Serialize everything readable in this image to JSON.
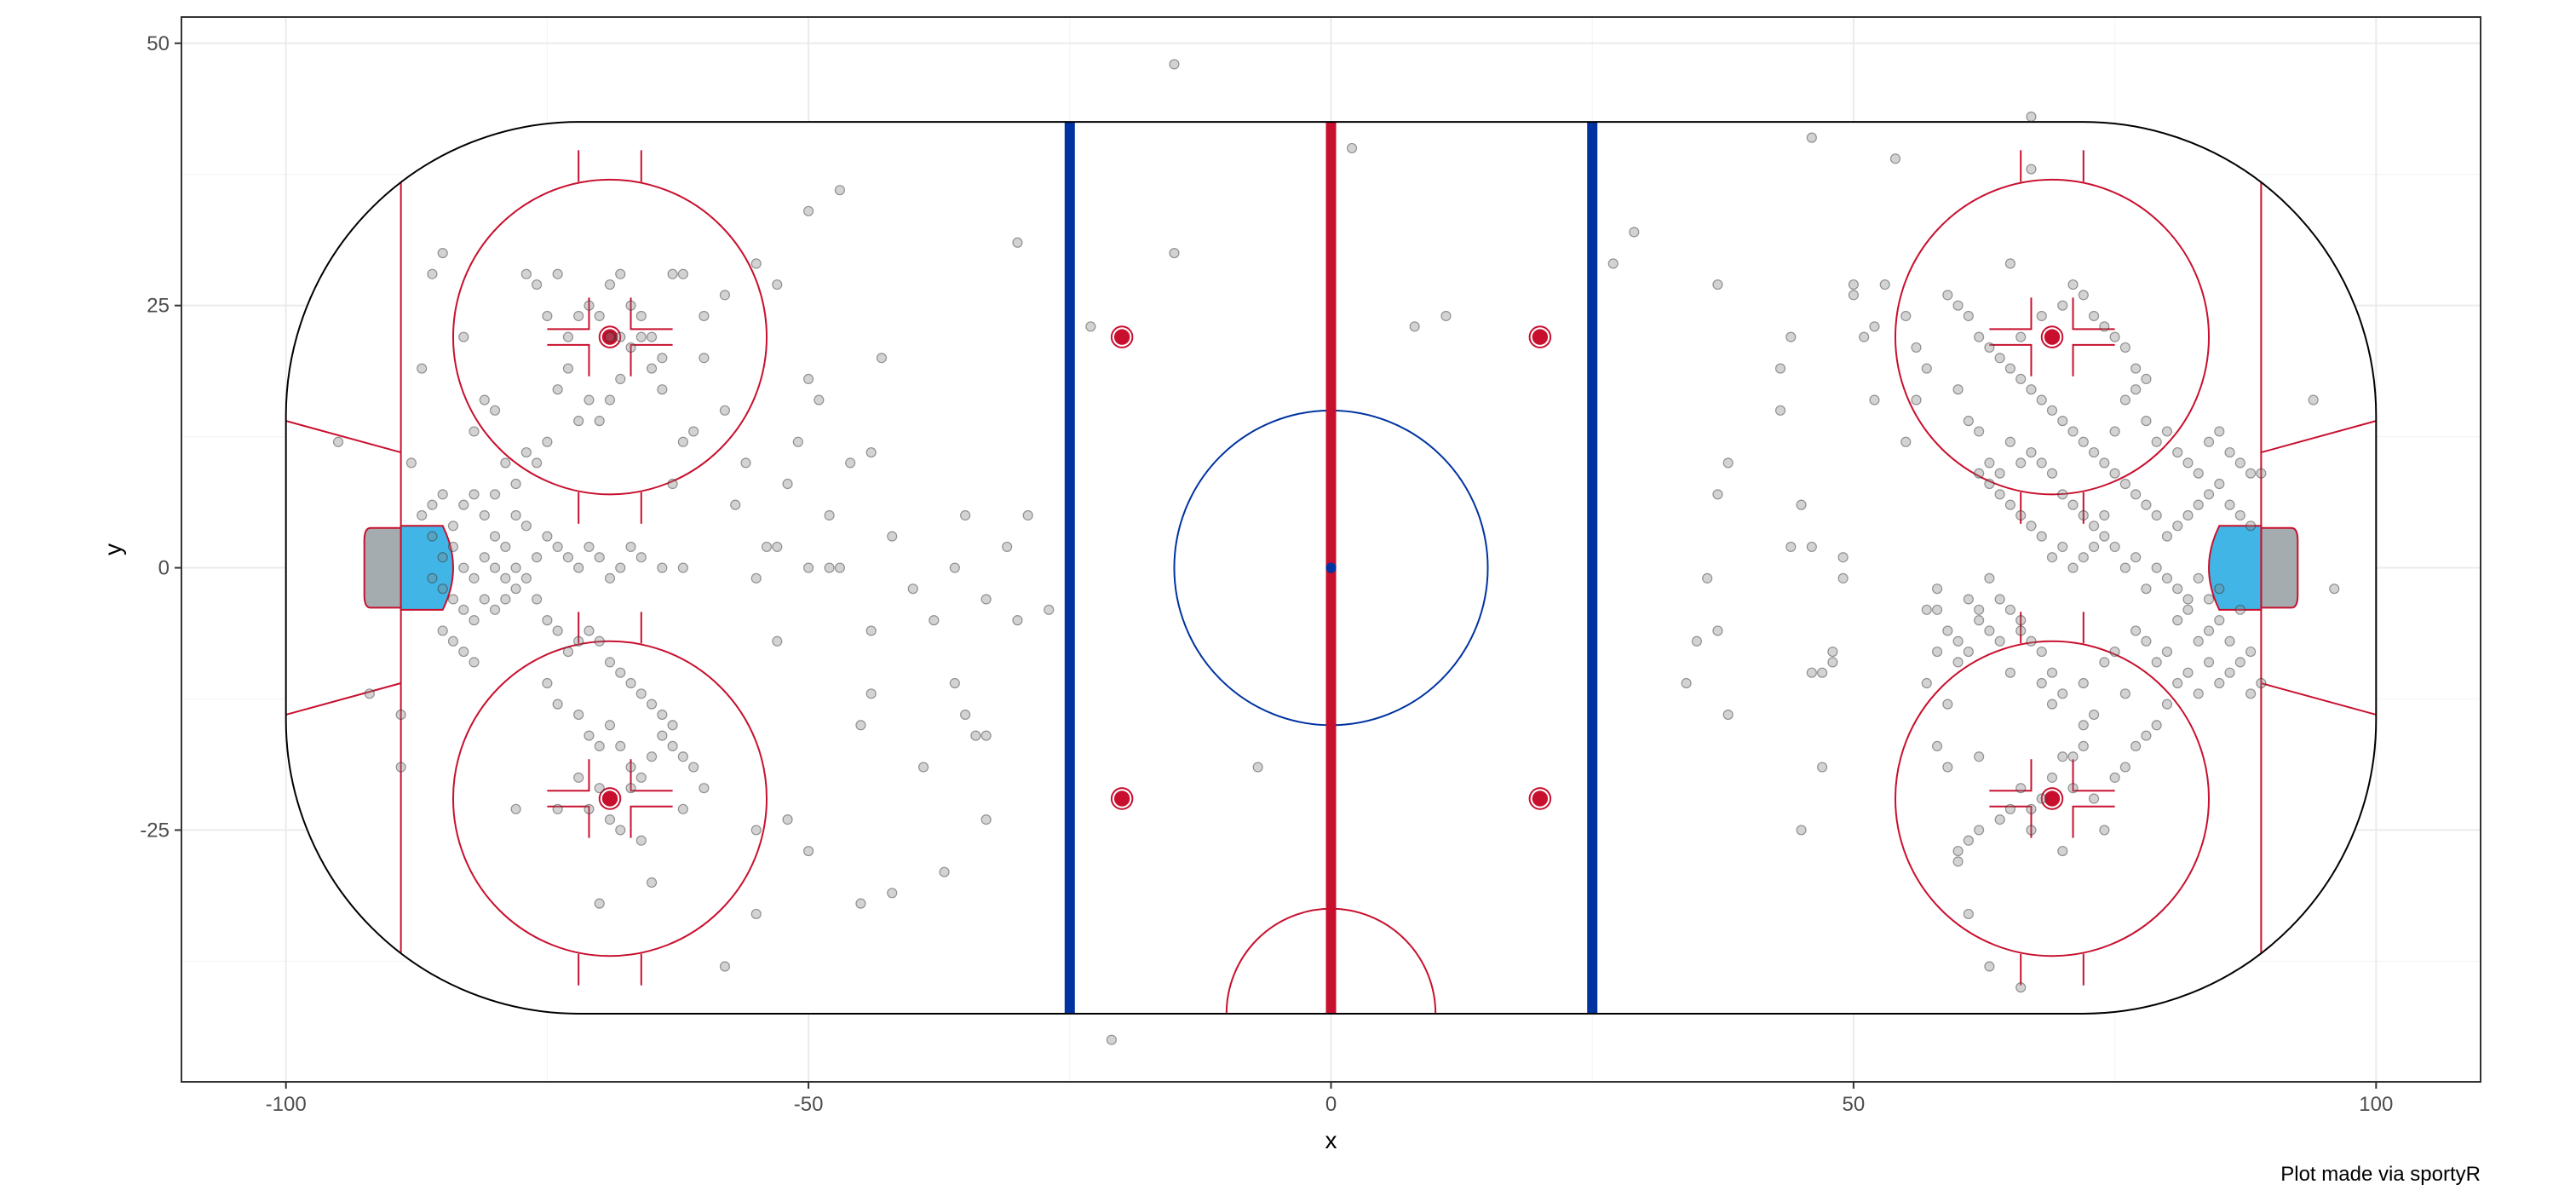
{
  "chart_data": {
    "type": "scatter",
    "title": "",
    "xlabel": "x",
    "ylabel": "y",
    "caption": "Plot made via sportyR",
    "xlim": [
      -110,
      110
    ],
    "ylim": [
      -49,
      52.5
    ],
    "x_ticks": [
      -100,
      -50,
      0,
      50,
      100
    ],
    "x_tick_labels": [
      "-100",
      "-50",
      "0",
      "50",
      "100"
    ],
    "y_ticks": [
      -25,
      0,
      25,
      50
    ],
    "y_tick_labels": [
      "-25",
      "0",
      "25",
      "50"
    ],
    "grid": true,
    "legend": "none",
    "colors": {
      "points": "#808080",
      "boards": "#000000",
      "red_lines": "#c8102e",
      "blue_lines": "#0033a0",
      "center_circle": "#0033a0",
      "crease": "#41b6e6",
      "net": "#a5acaf",
      "grid_major": "#ebebeb",
      "grid_minor": "#f5f5f5"
    },
    "rink": {
      "x_extent": [
        -100,
        100
      ],
      "y_extent": [
        -42.5,
        42.5
      ],
      "corner_radius": 28,
      "goal_line_x": 89,
      "blue_line_x": 25,
      "center_circle_radius": 15,
      "faceoff_circle_radius": 15,
      "faceoff_spots": [
        [
          -69,
          22
        ],
        [
          -69,
          -22
        ],
        [
          69,
          22
        ],
        [
          69,
          -22
        ],
        [
          -20,
          22
        ],
        [
          -20,
          -22
        ],
        [
          20,
          22
        ],
        [
          20,
          -22
        ]
      ]
    },
    "points": [
      [
        -95,
        12
      ],
      [
        -92,
        -12
      ],
      [
        -89,
        -19
      ],
      [
        -89,
        -14
      ],
      [
        -88,
        10
      ],
      [
        -87,
        19
      ],
      [
        -86,
        6
      ],
      [
        -85,
        7
      ],
      [
        -84,
        4
      ],
      [
        -83,
        6
      ],
      [
        -82,
        7
      ],
      [
        -81,
        5
      ],
      [
        -80,
        7
      ],
      [
        -80,
        3
      ],
      [
        -79,
        2
      ],
      [
        -78,
        5
      ],
      [
        -77,
        4
      ],
      [
        -76,
        1
      ],
      [
        -75,
        3
      ],
      [
        -74,
        2
      ],
      [
        -73,
        1
      ],
      [
        -72,
        0
      ],
      [
        -71,
        2
      ],
      [
        -70,
        1
      ],
      [
        -69,
        -1
      ],
      [
        -68,
        0
      ],
      [
        -67,
        2
      ],
      [
        -66,
        1
      ],
      [
        -64,
        0
      ],
      [
        -62,
        0
      ],
      [
        -87,
        5
      ],
      [
        -86,
        3
      ],
      [
        -85,
        1
      ],
      [
        -84,
        2
      ],
      [
        -83,
        0
      ],
      [
        -82,
        -1
      ],
      [
        -81,
        1
      ],
      [
        -80,
        0
      ],
      [
        -79,
        -1
      ],
      [
        -78,
        -2
      ],
      [
        -86,
        -1
      ],
      [
        -85,
        -2
      ],
      [
        -84,
        -3
      ],
      [
        -83,
        -4
      ],
      [
        -82,
        -5
      ],
      [
        -81,
        -3
      ],
      [
        -80,
        -4
      ],
      [
        -79,
        -3
      ],
      [
        -78,
        0
      ],
      [
        -77,
        -1
      ],
      [
        -85,
        -6
      ],
      [
        -84,
        -7
      ],
      [
        -83,
        -8
      ],
      [
        -82,
        -9
      ],
      [
        -76,
        -3
      ],
      [
        -75,
        -5
      ],
      [
        -74,
        -6
      ],
      [
        -73,
        -8
      ],
      [
        -72,
        -7
      ],
      [
        -71,
        -6
      ],
      [
        -70,
        -7
      ],
      [
        -69,
        -9
      ],
      [
        -68,
        -10
      ],
      [
        -67,
        -11
      ],
      [
        -66,
        -12
      ],
      [
        -65,
        -13
      ],
      [
        -64,
        -14
      ],
      [
        -63,
        -15
      ],
      [
        -75,
        -11
      ],
      [
        -74,
        -13
      ],
      [
        -72,
        -14
      ],
      [
        -71,
        -16
      ],
      [
        -70,
        -17
      ],
      [
        -69,
        -15
      ],
      [
        -68,
        -17
      ],
      [
        -67,
        -19
      ],
      [
        -66,
        -20
      ],
      [
        -65,
        -18
      ],
      [
        -64,
        -16
      ],
      [
        -63,
        -17
      ],
      [
        -62,
        -18
      ],
      [
        -61,
        -19
      ],
      [
        -60,
        -21
      ],
      [
        -74,
        -23
      ],
      [
        -72,
        -20
      ],
      [
        -71,
        -23
      ],
      [
        -70,
        -21
      ],
      [
        -69,
        -24
      ],
      [
        -68,
        -25
      ],
      [
        -67,
        -21
      ],
      [
        -66,
        -26
      ],
      [
        -65,
        -30
      ],
      [
        -70,
        -32
      ],
      [
        -78,
        -23
      ],
      [
        -58,
        -38
      ],
      [
        -62,
        -23
      ],
      [
        -55,
        -25
      ],
      [
        -52,
        -24
      ],
      [
        -55,
        -33
      ],
      [
        -50,
        -27
      ],
      [
        -45,
        -32
      ],
      [
        -42,
        -31
      ],
      [
        -37,
        -29
      ],
      [
        -33,
        -24
      ],
      [
        -36,
        -11
      ],
      [
        -35,
        -14
      ],
      [
        -34,
        -16
      ],
      [
        -33,
        -16
      ],
      [
        -38,
        -5
      ],
      [
        -45,
        -15
      ],
      [
        -44,
        -6
      ],
      [
        -40,
        -2
      ],
      [
        -39,
        -19
      ],
      [
        -36,
        0
      ],
      [
        -33,
        -3
      ],
      [
        -31,
        2
      ],
      [
        -30,
        -5
      ],
      [
        -29,
        5
      ],
      [
        -27,
        -4
      ],
      [
        -35,
        5
      ],
      [
        -42,
        3
      ],
      [
        -47,
        0
      ],
      [
        -48,
        0
      ],
      [
        -50,
        0
      ],
      [
        -53,
        -7
      ],
      [
        -55,
        -1
      ],
      [
        -54,
        2
      ],
      [
        -53,
        2
      ],
      [
        -52,
        8
      ],
      [
        -51,
        12
      ],
      [
        -50,
        18
      ],
      [
        -49,
        16
      ],
      [
        -48,
        5
      ],
      [
        -46,
        10
      ],
      [
        -44,
        11
      ],
      [
        -43,
        20
      ],
      [
        -44,
        -12
      ],
      [
        -56,
        10
      ],
      [
        -57,
        6
      ],
      [
        -58,
        15
      ],
      [
        -58,
        26
      ],
      [
        -60,
        20
      ],
      [
        -61,
        13
      ],
      [
        -62,
        12
      ],
      [
        -63,
        8
      ],
      [
        -64,
        17
      ],
      [
        -65,
        19
      ],
      [
        -66,
        22
      ],
      [
        -67,
        21
      ],
      [
        -68,
        18
      ],
      [
        -69,
        16
      ],
      [
        -70,
        14
      ],
      [
        -71,
        16
      ],
      [
        -72,
        14
      ],
      [
        -73,
        19
      ],
      [
        -74,
        17
      ],
      [
        -75,
        12
      ],
      [
        -76,
        10
      ],
      [
        -77,
        11
      ],
      [
        -78,
        8
      ],
      [
        -79,
        10
      ],
      [
        -80,
        15
      ],
      [
        -81,
        16
      ],
      [
        -82,
        13
      ],
      [
        -83,
        22
      ],
      [
        -85,
        30
      ],
      [
        -86,
        28
      ],
      [
        -72,
        24
      ],
      [
        -73,
        22
      ],
      [
        -71,
        25
      ],
      [
        -70,
        24
      ],
      [
        -69,
        27
      ],
      [
        -68,
        28
      ],
      [
        -67,
        25
      ],
      [
        -66,
        24
      ],
      [
        -65,
        22
      ],
      [
        -64,
        20
      ],
      [
        -63,
        28
      ],
      [
        -62,
        28
      ],
      [
        -60,
        24
      ],
      [
        -74,
        28
      ],
      [
        -75,
        24
      ],
      [
        -76,
        27
      ],
      [
        -77,
        28
      ],
      [
        -69,
        22
      ],
      [
        -68,
        22
      ],
      [
        -55,
        29
      ],
      [
        -53,
        27
      ],
      [
        -50,
        34
      ],
      [
        -47,
        36
      ],
      [
        -30,
        31
      ],
      [
        -23,
        23
      ],
      [
        -15,
        30
      ],
      [
        -15,
        48
      ],
      [
        -21,
        -45
      ],
      [
        -7,
        -19
      ],
      [
        2,
        40
      ],
      [
        8,
        23
      ],
      [
        11,
        24
      ],
      [
        27,
        29
      ],
      [
        29,
        32
      ],
      [
        37,
        27
      ],
      [
        38,
        10
      ],
      [
        37,
        7
      ],
      [
        36,
        -1
      ],
      [
        35,
        -7
      ],
      [
        34,
        -11
      ],
      [
        37,
        -6
      ],
      [
        38,
        -14
      ],
      [
        43,
        15
      ],
      [
        43,
        19
      ],
      [
        44,
        22
      ],
      [
        44,
        2
      ],
      [
        45,
        6
      ],
      [
        46,
        2
      ],
      [
        46,
        -10
      ],
      [
        45,
        -25
      ],
      [
        46,
        41
      ],
      [
        47,
        -19
      ],
      [
        47,
        -10
      ],
      [
        48,
        -8
      ],
      [
        48,
        -9
      ],
      [
        49,
        1
      ],
      [
        49,
        -1
      ],
      [
        50,
        27
      ],
      [
        50,
        26
      ],
      [
        51,
        22
      ],
      [
        52,
        23
      ],
      [
        52,
        16
      ],
      [
        53,
        27
      ],
      [
        54,
        39
      ],
      [
        55,
        24
      ],
      [
        55,
        12
      ],
      [
        56,
        21
      ],
      [
        56,
        16
      ],
      [
        57,
        19
      ],
      [
        57,
        -4
      ],
      [
        58,
        -2
      ],
      [
        58,
        -8
      ],
      [
        59,
        -13
      ],
      [
        57,
        -11
      ],
      [
        58,
        -17
      ],
      [
        59,
        -19
      ],
      [
        60,
        -28
      ],
      [
        60,
        -9
      ],
      [
        61,
        -33
      ],
      [
        62,
        -18
      ],
      [
        63,
        -38
      ],
      [
        62,
        -4
      ],
      [
        61,
        -3
      ],
      [
        63,
        -1
      ],
      [
        64,
        -7
      ],
      [
        65,
        -10
      ],
      [
        66,
        -5
      ],
      [
        67,
        -23
      ],
      [
        68,
        -11
      ],
      [
        69,
        -13
      ],
      [
        70,
        -18
      ],
      [
        71,
        -21
      ],
      [
        72,
        -11
      ],
      [
        73,
        -14
      ],
      [
        74,
        -9
      ],
      [
        75,
        -8
      ],
      [
        76,
        -12
      ],
      [
        77,
        -6
      ],
      [
        78,
        -7
      ],
      [
        79,
        -9
      ],
      [
        80,
        -8
      ],
      [
        81,
        -5
      ],
      [
        82,
        -4
      ],
      [
        83,
        -7
      ],
      [
        84,
        -6
      ],
      [
        85,
        -5
      ],
      [
        86,
        -7
      ],
      [
        87,
        -4
      ],
      [
        88,
        -8
      ],
      [
        84,
        -3
      ],
      [
        85,
        -2
      ],
      [
        83,
        -1
      ],
      [
        82,
        -3
      ],
      [
        81,
        -2
      ],
      [
        80,
        -1
      ],
      [
        79,
        0
      ],
      [
        78,
        -2
      ],
      [
        77,
        1
      ],
      [
        76,
        0
      ],
      [
        75,
        2
      ],
      [
        74,
        3
      ],
      [
        73,
        2
      ],
      [
        72,
        1
      ],
      [
        71,
        0
      ],
      [
        70,
        2
      ],
      [
        69,
        1
      ],
      [
        68,
        3
      ],
      [
        67,
        4
      ],
      [
        66,
        5
      ],
      [
        65,
        6
      ],
      [
        64,
        7
      ],
      [
        63,
        8
      ],
      [
        62,
        9
      ],
      [
        80,
        3
      ],
      [
        81,
        4
      ],
      [
        82,
        5
      ],
      [
        83,
        6
      ],
      [
        84,
        7
      ],
      [
        85,
        8
      ],
      [
        86,
        6
      ],
      [
        87,
        5
      ],
      [
        88,
        4
      ],
      [
        79,
        5
      ],
      [
        78,
        6
      ],
      [
        77,
        7
      ],
      [
        76,
        8
      ],
      [
        75,
        9
      ],
      [
        74,
        10
      ],
      [
        73,
        11
      ],
      [
        72,
        12
      ],
      [
        71,
        13
      ],
      [
        70,
        14
      ],
      [
        69,
        15
      ],
      [
        68,
        16
      ],
      [
        67,
        17
      ],
      [
        66,
        18
      ],
      [
        65,
        19
      ],
      [
        64,
        20
      ],
      [
        63,
        21
      ],
      [
        62,
        22
      ],
      [
        61,
        24
      ],
      [
        60,
        25
      ],
      [
        59,
        26
      ],
      [
        60,
        17
      ],
      [
        61,
        14
      ],
      [
        62,
        13
      ],
      [
        63,
        10
      ],
      [
        64,
        9
      ],
      [
        65,
        12
      ],
      [
        66,
        10
      ],
      [
        67,
        11
      ],
      [
        68,
        10
      ],
      [
        69,
        9
      ],
      [
        70,
        7
      ],
      [
        71,
        6
      ],
      [
        72,
        5
      ],
      [
        73,
        4
      ],
      [
        74,
        5
      ],
      [
        75,
        13
      ],
      [
        76,
        16
      ],
      [
        77,
        17
      ],
      [
        78,
        14
      ],
      [
        79,
        12
      ],
      [
        80,
        13
      ],
      [
        81,
        11
      ],
      [
        82,
        10
      ],
      [
        83,
        9
      ],
      [
        84,
        12
      ],
      [
        85,
        13
      ],
      [
        86,
        11
      ],
      [
        87,
        10
      ],
      [
        88,
        9
      ],
      [
        89,
        9
      ],
      [
        65,
        29
      ],
      [
        67,
        38
      ],
      [
        67,
        43
      ],
      [
        66,
        22
      ],
      [
        68,
        24
      ],
      [
        70,
        25
      ],
      [
        71,
        27
      ],
      [
        72,
        26
      ],
      [
        73,
        24
      ],
      [
        74,
        23
      ],
      [
        75,
        22
      ],
      [
        76,
        21
      ],
      [
        77,
        19
      ],
      [
        78,
        18
      ],
      [
        94,
        16
      ],
      [
        96,
        -2
      ],
      [
        58,
        -4
      ],
      [
        59,
        -6
      ],
      [
        60,
        -7
      ],
      [
        61,
        -8
      ],
      [
        62,
        -5
      ],
      [
        63,
        -6
      ],
      [
        64,
        -3
      ],
      [
        65,
        -4
      ],
      [
        66,
        -6
      ],
      [
        67,
        -7
      ],
      [
        68,
        -8
      ],
      [
        69,
        -10
      ],
      [
        70,
        -12
      ],
      [
        72,
        -15
      ],
      [
        72,
        -17
      ],
      [
        71,
        -18
      ],
      [
        69,
        -20
      ],
      [
        68,
        -22
      ],
      [
        66,
        -21
      ],
      [
        65,
        -23
      ],
      [
        64,
        -24
      ],
      [
        62,
        -25
      ],
      [
        61,
        -26
      ],
      [
        66,
        -40
      ],
      [
        60,
        -27
      ],
      [
        67,
        -25
      ],
      [
        70,
        -27
      ],
      [
        73,
        -22
      ],
      [
        74,
        -25
      ],
      [
        75,
        -20
      ],
      [
        76,
        -19
      ],
      [
        77,
        -17
      ],
      [
        78,
        -16
      ],
      [
        79,
        -15
      ],
      [
        80,
        -13
      ],
      [
        81,
        -11
      ],
      [
        82,
        -10
      ],
      [
        83,
        -12
      ],
      [
        84,
        -9
      ],
      [
        85,
        -11
      ],
      [
        86,
        -10
      ],
      [
        87,
        -9
      ],
      [
        88,
        -12
      ],
      [
        89,
        -11
      ]
    ]
  }
}
